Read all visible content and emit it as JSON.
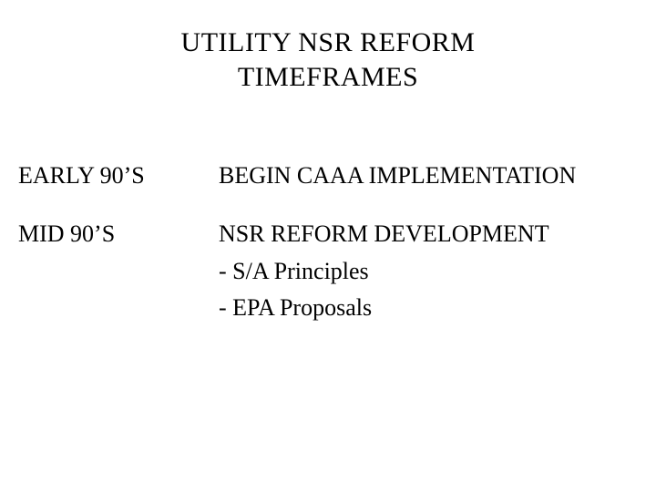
{
  "title": {
    "line1": "UTILITY NSR REFORM",
    "line2": "TIMEFRAMES"
  },
  "rows": [
    {
      "period": "EARLY 90’S",
      "heading": "BEGIN CAAA IMPLEMENTATION",
      "subitems": []
    },
    {
      "period": "MID 90’S",
      "heading": "NSR REFORM DEVELOPMENT",
      "subitems": [
        "- S/A Principles",
        "- EPA Proposals"
      ]
    }
  ],
  "style": {
    "background_color": "#ffffff",
    "text_color": "#000000",
    "font_family": "Times New Roman",
    "title_fontsize": 30,
    "body_fontsize": 26
  }
}
